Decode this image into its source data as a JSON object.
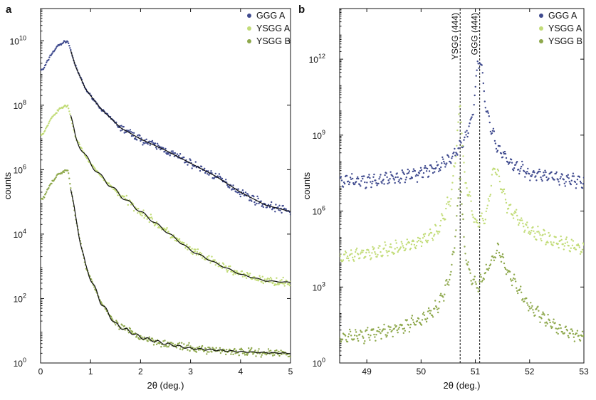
{
  "colors": {
    "GGG A": "#3f4a8e",
    "YSGG A": "#c2dc78",
    "YSGG B": "#8ea84c",
    "fit": "#111111"
  },
  "chart_data": [
    {
      "panel_label": "a",
      "type": "scatter",
      "xlabel": "2θ (deg.)",
      "ylabel": "counts",
      "xlim": [
        0,
        5
      ],
      "ylim_log10": [
        0,
        11
      ],
      "y_scale": "log",
      "x_ticks": [
        "0",
        "1",
        "2",
        "3",
        "4",
        "5"
      ],
      "y_tick_exponents": [
        "0",
        "2",
        "4",
        "6",
        "8",
        "10"
      ],
      "legend": {
        "placement": "top-right",
        "entries": [
          "GGG A",
          "YSGG A",
          "YSGG B"
        ]
      },
      "grid": false,
      "series": [
        {
          "name": "GGG A",
          "x": [
            0.05,
            0.2,
            0.35,
            0.5,
            0.55,
            0.7,
            0.9,
            1.2,
            1.6,
            2.0,
            2.5,
            3.0,
            3.5,
            4.0,
            4.5,
            5.0
          ],
          "y_log10": [
            9.1,
            9.55,
            9.85,
            9.98,
            9.97,
            9.2,
            8.5,
            7.9,
            7.3,
            6.95,
            6.6,
            6.2,
            5.8,
            5.3,
            4.9,
            4.7
          ]
        },
        {
          "name": "YSGG A",
          "x": [
            0.05,
            0.2,
            0.35,
            0.5,
            0.55,
            0.7,
            0.9,
            1.2,
            1.6,
            2.0,
            2.5,
            3.0,
            3.5,
            4.0,
            4.5,
            5.0
          ],
          "y_log10": [
            7.1,
            7.55,
            7.85,
            7.98,
            7.97,
            7.0,
            6.4,
            5.8,
            5.2,
            4.7,
            4.1,
            3.5,
            3.1,
            2.75,
            2.55,
            2.5
          ]
        },
        {
          "name": "YSGG B",
          "x": [
            0.05,
            0.2,
            0.35,
            0.5,
            0.55,
            0.7,
            0.9,
            1.2,
            1.5,
            2.0,
            2.5,
            3.0,
            3.5,
            4.0,
            4.5,
            5.0
          ],
          "y_log10": [
            5.1,
            5.55,
            5.85,
            5.98,
            5.97,
            4.5,
            3.0,
            1.9,
            1.2,
            0.8,
            0.6,
            0.45,
            0.4,
            0.35,
            0.32,
            0.3
          ]
        }
      ]
    },
    {
      "panel_label": "b",
      "type": "scatter",
      "xlabel": "2θ (deg.)",
      "ylabel": "counts",
      "xlim": [
        48.5,
        53
      ],
      "ylim_log10": [
        0,
        14
      ],
      "y_scale": "log",
      "x_ticks": [
        "49",
        "50",
        "51",
        "52",
        "53"
      ],
      "y_tick_exponents": [
        "0",
        "3",
        "6",
        "9",
        "12"
      ],
      "legend": {
        "placement": "top-right",
        "entries": [
          "GGG A",
          "YSGG A",
          "YSGG B"
        ]
      },
      "grid": false,
      "reference_lines": [
        {
          "label": "YSGG (444)",
          "x": 50.72
        },
        {
          "label": "GGG (444)",
          "x": 51.08
        }
      ],
      "series": [
        {
          "name": "GGG A",
          "x": [
            48.5,
            49.0,
            49.5,
            50.0,
            50.3,
            50.6,
            50.8,
            50.95,
            51.05,
            51.1,
            51.2,
            51.4,
            51.7,
            52.0,
            52.5,
            53.0
          ],
          "y_log10": [
            7.2,
            7.2,
            7.3,
            7.5,
            7.7,
            8.2,
            8.8,
            9.8,
            11.8,
            12.0,
            10.0,
            8.5,
            7.8,
            7.5,
            7.3,
            7.2
          ]
        },
        {
          "name": "YSGG A",
          "x": [
            48.5,
            49.0,
            49.5,
            50.0,
            50.3,
            50.55,
            50.65,
            50.72,
            50.8,
            50.9,
            51.0,
            51.2,
            51.35,
            51.6,
            52.0,
            52.5,
            53.0
          ],
          "y_log10": [
            4.2,
            4.3,
            4.5,
            4.8,
            5.2,
            6.5,
            8.5,
            10.3,
            7.3,
            6.5,
            5.5,
            5.8,
            7.8,
            6.2,
            5.2,
            4.8,
            4.5
          ]
        },
        {
          "name": "YSGG B",
          "x": [
            48.5,
            49.0,
            49.5,
            50.0,
            50.3,
            50.55,
            50.65,
            50.72,
            50.8,
            50.9,
            51.05,
            51.2,
            51.42,
            51.6,
            52.0,
            52.5,
            53.0
          ],
          "y_log10": [
            1.0,
            1.1,
            1.3,
            1.7,
            2.2,
            3.5,
            5.5,
            7.5,
            4.5,
            3.5,
            3.0,
            3.6,
            4.5,
            3.6,
            2.2,
            1.4,
            1.0
          ]
        }
      ]
    }
  ]
}
